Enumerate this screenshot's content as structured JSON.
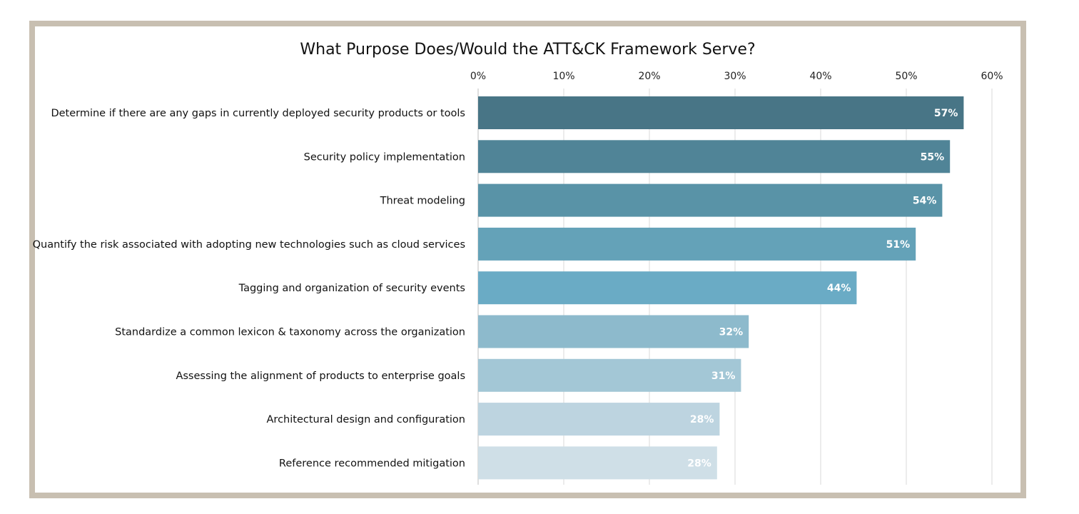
{
  "chart_data": {
    "type": "bar",
    "orientation": "horizontal",
    "title": "What Purpose Does/Would the ATT&CK Framework Serve?",
    "xlabel": "",
    "ylabel": "",
    "xlim": [
      0,
      60
    ],
    "x_axis_position": "top",
    "grid": true,
    "x_ticks": [
      "0%",
      "10%",
      "20%",
      "30%",
      "40%",
      "50%",
      "60%"
    ],
    "categories": [
      "Determine if there are any gaps in currently deployed security products or tools",
      "Security policy implementation",
      "Threat modeling",
      "Quantify the risk associated with adopting new technologies such as cloud services",
      "Tagging and organization of security events",
      "Standardize a common lexicon & taxonomy across the organization",
      "Assessing the alignment of products to enterprise goals",
      "Architectural design and configuration",
      "Reference recommended mitigation"
    ],
    "values": [
      56.7,
      55.1,
      54.2,
      51.1,
      44.2,
      31.6,
      30.7,
      28.2,
      27.9
    ],
    "value_labels": [
      "57%",
      "55%",
      "54%",
      "51%",
      "44%",
      "32%",
      "31%",
      "28%",
      "28%"
    ],
    "bar_colors": [
      "#487586",
      "#508497",
      "#5993a7",
      "#64a2b8",
      "#6aabc5",
      "#8dbacc",
      "#a3c7d6",
      "#bdd4e0",
      "#cfdfe7"
    ],
    "colors": {
      "frame": "#c8bfb1",
      "grid": "#d9d9d9"
    }
  }
}
